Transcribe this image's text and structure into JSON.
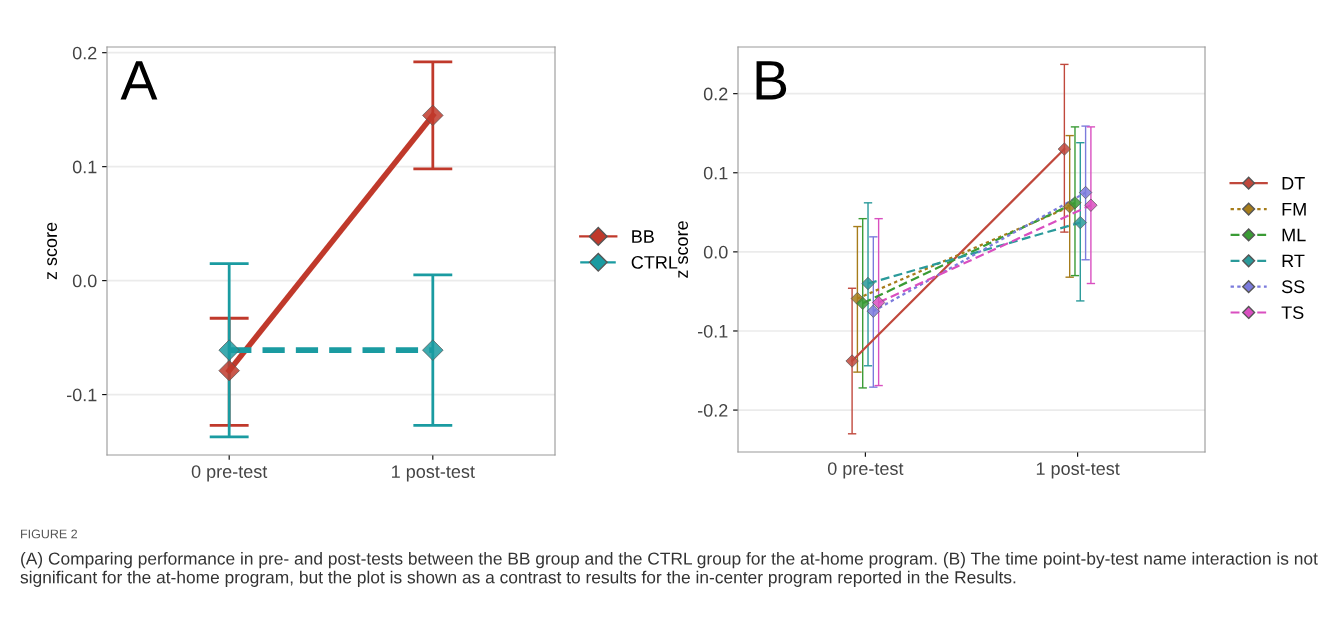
{
  "chart_data": [
    {
      "type": "line",
      "ylabel": "z score",
      "categories": [
        "0 pre-test",
        "1 post-test"
      ],
      "ylim": [
        -0.153,
        0.205
      ],
      "yticks": [
        {
          "value": -0.1,
          "label": "-0.1"
        },
        {
          "value": 0.0,
          "label": "0.0"
        },
        {
          "value": 0.1,
          "label": "0.1"
        },
        {
          "value": 0.2,
          "label": "0.2"
        }
      ],
      "grid": true,
      "legend": "right",
      "marker": "diamond",
      "annotations": [
        "A"
      ],
      "series": [
        {
          "name": "BB",
          "color": "#c0392b",
          "line_style": "solid",
          "values": [
            -0.079,
            0.145
          ],
          "errors": [
            [
              -0.127,
              -0.033
            ],
            [
              0.098,
              0.192
            ]
          ]
        },
        {
          "name": "CTRL",
          "color": "#1a9ba1",
          "line_style": "dashed",
          "values": [
            -0.061,
            -0.061
          ],
          "errors": [
            [
              -0.137,
              0.015
            ],
            [
              -0.127,
              0.005
            ]
          ]
        }
      ]
    },
    {
      "type": "line",
      "ylabel": "z score",
      "categories": [
        "0 pre-test",
        "1 post-test"
      ],
      "ylim": [
        -0.253,
        0.259
      ],
      "yticks": [
        {
          "value": -0.2,
          "label": "-0.2"
        },
        {
          "value": -0.1,
          "label": "-0.1"
        },
        {
          "value": 0.0,
          "label": "0.0"
        },
        {
          "value": 0.1,
          "label": "0.1"
        },
        {
          "value": 0.2,
          "label": "0.2"
        }
      ],
      "grid": true,
      "legend": "right",
      "marker": "diamond",
      "annotations": [
        "B",
        "FIGURE 2",
        "(A) Comparing performance in pre- and post-tests between the BB group and the CTRL group for the at-home program. (B) The time point-by-test name interaction is not significant for the at-home program, but the plot is shown as a contrast to results for the in-center program reported in the Results."
      ],
      "series": [
        {
          "name": "DT",
          "color": "#c0483c",
          "line_style": "solid",
          "values": [
            -0.138,
            0.13
          ],
          "errors": [
            [
              -0.23,
              -0.046
            ],
            [
              0.025,
              0.237
            ]
          ]
        },
        {
          "name": "FM",
          "color": "#a67c1a",
          "line_style": "dotted",
          "values": [
            -0.059,
            0.057
          ],
          "errors": [
            [
              -0.152,
              0.032
            ],
            [
              -0.032,
              0.147
            ]
          ]
        },
        {
          "name": "ML",
          "color": "#3a9b35",
          "line_style": "dashed",
          "values": [
            -0.065,
            0.062
          ],
          "errors": [
            [
              -0.172,
              0.042
            ],
            [
              -0.03,
              0.158
            ]
          ]
        },
        {
          "name": "RT",
          "color": "#2a9a9a",
          "line_style": "dashed",
          "values": [
            -0.04,
            0.037
          ],
          "errors": [
            [
              -0.144,
              0.062
            ],
            [
              -0.062,
              0.138
            ]
          ]
        },
        {
          "name": "SS",
          "color": "#7b7bdc",
          "line_style": "dotted",
          "values": [
            -0.075,
            0.075
          ],
          "errors": [
            [
              -0.171,
              0.019
            ],
            [
              -0.01,
              0.159
            ]
          ]
        },
        {
          "name": "TS",
          "color": "#d94fc0",
          "line_style": "dashed",
          "values": [
            -0.064,
            0.059
          ],
          "errors": [
            [
              -0.169,
              0.042
            ],
            [
              -0.04,
              0.158
            ]
          ]
        }
      ]
    }
  ]
}
